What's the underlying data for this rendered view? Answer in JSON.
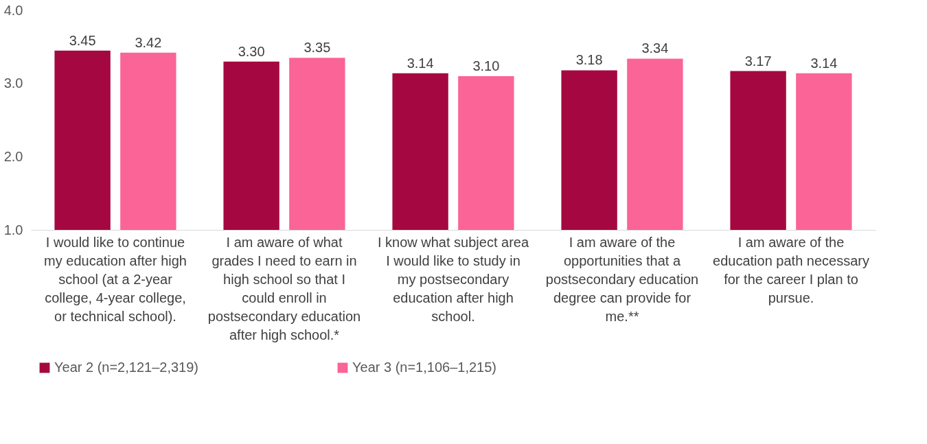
{
  "chart_data": {
    "type": "bar",
    "categories": [
      "I would like to continue my education after high school (at a 2-year college, 4-year college, or technical school).",
      "I am aware of what grades I need to earn in high school so that I could enroll in postsecondary education after high school.*",
      "I know what subject area I would like to study in my postsecondary education after high school.",
      "I am aware of the opportunities that a postsecondary education degree can provide for me.**",
      "I am aware of the education path necessary for the career I plan to pursue."
    ],
    "series": [
      {
        "name": "Year 2 (n=2,121–2,319)",
        "color": "#a50840",
        "values": [
          3.45,
          3.3,
          3.14,
          3.18,
          3.17
        ],
        "value_labels": [
          "3.45",
          "3.30",
          "3.14",
          "3.18",
          "3.17"
        ]
      },
      {
        "name": "Year 3 (n=1,106–1,215)",
        "color": "#fa6496",
        "values": [
          3.42,
          3.35,
          3.1,
          3.34,
          3.14
        ],
        "value_labels": [
          "3.42",
          "3.35",
          "3.10",
          "3.34",
          "3.14"
        ]
      }
    ],
    "ylim": [
      1,
      4
    ],
    "yticks": [
      {
        "value": 1,
        "label": "1.0"
      },
      {
        "value": 2,
        "label": "2.0"
      },
      {
        "value": 3,
        "label": "3.0"
      },
      {
        "value": 4,
        "label": "4.0"
      }
    ],
    "grid": false,
    "legend": "bottom"
  }
}
